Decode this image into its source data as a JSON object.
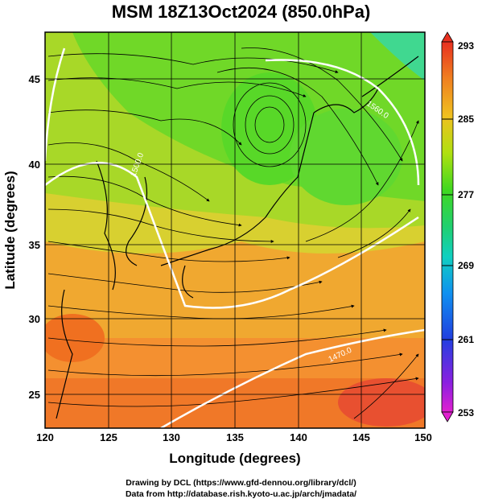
{
  "title": "MSM 18Z13Oct2024 (850.0hPa)",
  "x_axis": {
    "label": "Longitude (degrees)",
    "range": [
      120,
      150
    ],
    "ticks": [
      "120",
      "125",
      "130",
      "135",
      "140",
      "145",
      "150"
    ]
  },
  "y_axis": {
    "label": "Latitude  (degrees)",
    "range": [
      22.4,
      47.6
    ],
    "ticks": [
      "25",
      "30",
      "35",
      "40",
      "45"
    ]
  },
  "colorbar": {
    "min": 253,
    "max": 293,
    "ticks": [
      "293",
      "285",
      "277",
      "269",
      "261",
      "253"
    ]
  },
  "contour_labels": [
    "1560.0",
    "1500.0",
    "1470.0"
  ],
  "credits": {
    "line1": "Drawing by DCL (https://www.gfd-dennou.org/library/dcl/)",
    "line2": "Data from http://database.rish.kyoto-u.ac.jp/arch/jmadata/"
  }
}
